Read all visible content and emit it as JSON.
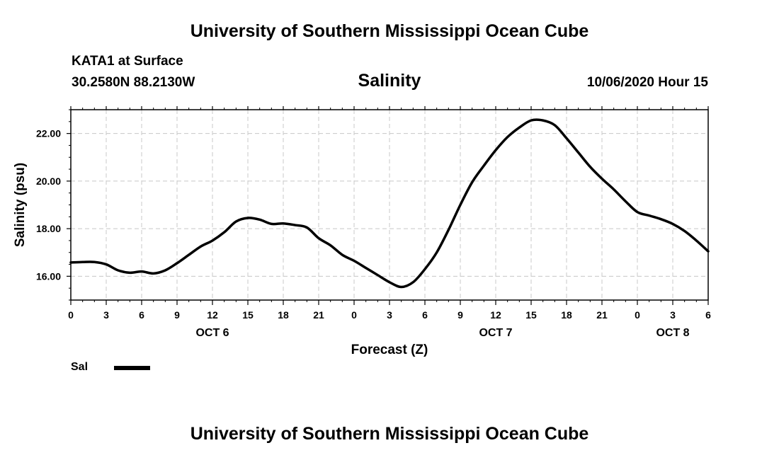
{
  "header": {
    "title": "University of Southern Mississippi Ocean Cube",
    "station": "KATA1 at Surface",
    "coords": "30.2580N 88.2130W",
    "parameter": "Salinity",
    "datetime": "10/06/2020 Hour 15"
  },
  "footer": {
    "title": "University of Southern Mississippi Ocean Cube"
  },
  "legend": {
    "label": "Sal",
    "color": "#000000"
  },
  "chart_data": {
    "type": "line",
    "title": "Salinity",
    "xlabel": "Forecast (Z)",
    "ylabel": "Salinity (psu)",
    "x_unit": "hours from Oct 6 00Z",
    "xlim": [
      0,
      54
    ],
    "ylim": [
      15,
      23
    ],
    "yticks": [
      16,
      18,
      20,
      22
    ],
    "ytick_labels": [
      "16.00",
      "18.00",
      "20.00",
      "22.00"
    ],
    "xticks": [
      0,
      3,
      6,
      9,
      12,
      15,
      18,
      21,
      24,
      27,
      30,
      33,
      36,
      39,
      42,
      45,
      48,
      51,
      54
    ],
    "xtick_labels": [
      "0",
      "3",
      "6",
      "9",
      "12",
      "15",
      "18",
      "21",
      "0",
      "3",
      "6",
      "9",
      "12",
      "15",
      "18",
      "21",
      "0",
      "3",
      "6"
    ],
    "day_labels": [
      {
        "x": 12,
        "label": "OCT 6"
      },
      {
        "x": 36,
        "label": "OCT 7"
      },
      {
        "x": 51,
        "label": "OCT 8"
      }
    ],
    "grid": true,
    "legend_position": "bottom-left",
    "series": [
      {
        "name": "Sal",
        "color": "#000000",
        "x": [
          0,
          1,
          2,
          3,
          4,
          5,
          6,
          7,
          8,
          9,
          10,
          11,
          12,
          13,
          14,
          15,
          16,
          17,
          18,
          19,
          20,
          21,
          22,
          23,
          24,
          25,
          26,
          27,
          28,
          29,
          30,
          31,
          32,
          33,
          34,
          35,
          36,
          37,
          38,
          39,
          40,
          41,
          42,
          43,
          44,
          45,
          46,
          47,
          48,
          49,
          50,
          51,
          52,
          53,
          54
        ],
        "values": [
          16.58,
          16.6,
          16.6,
          16.5,
          16.25,
          16.15,
          16.2,
          16.12,
          16.25,
          16.55,
          16.9,
          17.25,
          17.5,
          17.85,
          18.3,
          18.45,
          18.38,
          18.2,
          18.22,
          18.15,
          18.05,
          17.6,
          17.3,
          16.9,
          16.65,
          16.35,
          16.05,
          15.75,
          15.55,
          15.75,
          16.3,
          17.0,
          17.95,
          19.0,
          19.95,
          20.65,
          21.3,
          21.85,
          22.25,
          22.55,
          22.55,
          22.35,
          21.8,
          21.2,
          20.6,
          20.1,
          19.65,
          19.15,
          18.7,
          18.55,
          18.4,
          18.2,
          17.9,
          17.5,
          17.05
        ]
      }
    ]
  }
}
